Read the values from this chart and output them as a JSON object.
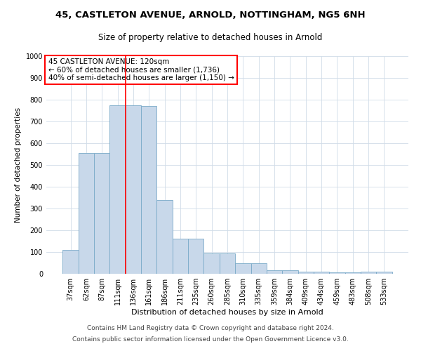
{
  "title1": "45, CASTLETON AVENUE, ARNOLD, NOTTINGHAM, NG5 6NH",
  "title2": "Size of property relative to detached houses in Arnold",
  "xlabel": "Distribution of detached houses by size in Arnold",
  "ylabel": "Number of detached properties",
  "categories": [
    "37sqm",
    "62sqm",
    "87sqm",
    "111sqm",
    "136sqm",
    "161sqm",
    "186sqm",
    "211sqm",
    "235sqm",
    "260sqm",
    "285sqm",
    "310sqm",
    "335sqm",
    "359sqm",
    "384sqm",
    "409sqm",
    "434sqm",
    "459sqm",
    "483sqm",
    "508sqm",
    "533sqm"
  ],
  "values": [
    110,
    555,
    555,
    775,
    775,
    770,
    340,
    160,
    160,
    95,
    95,
    50,
    50,
    15,
    15,
    10,
    10,
    5,
    5,
    10,
    10
  ],
  "bar_color": "#c8d8ea",
  "bar_edge_color": "#7aaac8",
  "grid_color": "#d0dce8",
  "vline_x": 3.5,
  "vline_color": "red",
  "annotation_text": "45 CASTLETON AVENUE: 120sqm\n← 60% of detached houses are smaller (1,736)\n40% of semi-detached houses are larger (1,150) →",
  "annotation_box_color": "white",
  "annotation_box_edge_color": "red",
  "footer1": "Contains HM Land Registry data © Crown copyright and database right 2024.",
  "footer2": "Contains public sector information licensed under the Open Government Licence v3.0.",
  "ylim": [
    0,
    1000
  ],
  "yticks": [
    0,
    100,
    200,
    300,
    400,
    500,
    600,
    700,
    800,
    900,
    1000
  ],
  "title1_fontsize": 9.5,
  "title2_fontsize": 8.5,
  "xlabel_fontsize": 8,
  "ylabel_fontsize": 7.5,
  "tick_fontsize": 7,
  "annotation_fontsize": 7.5,
  "footer_fontsize": 6.5
}
